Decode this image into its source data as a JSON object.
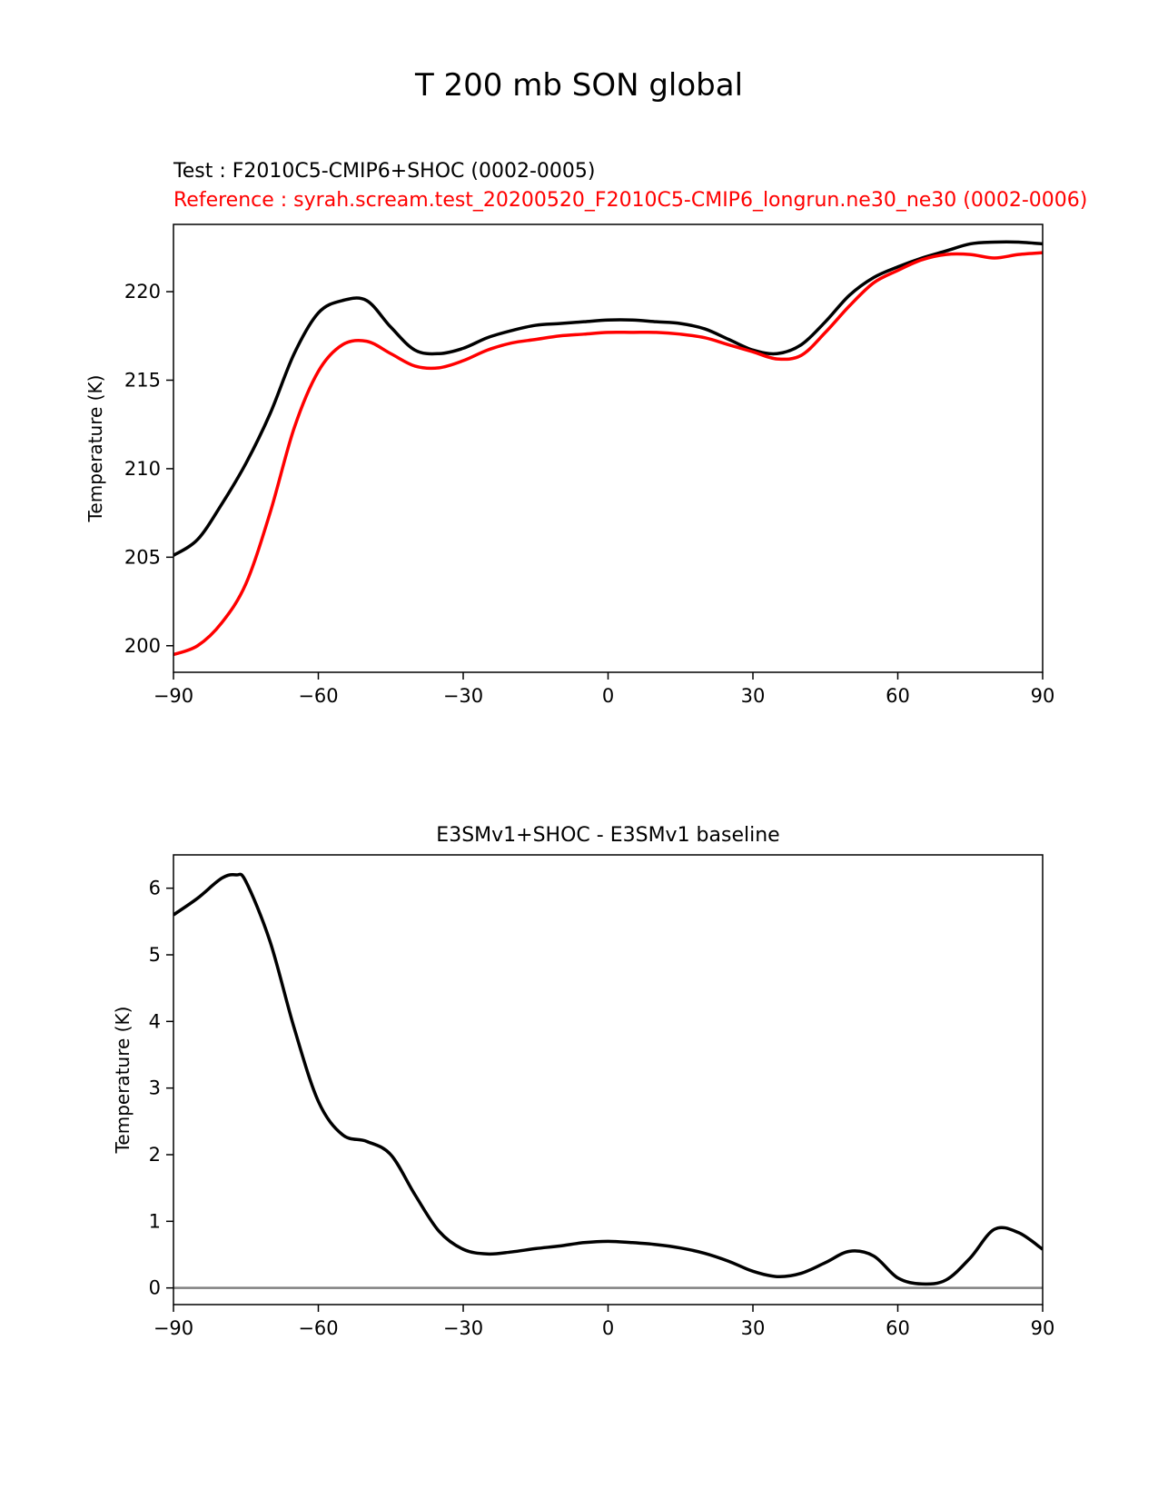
{
  "figure_title": "T 200 mb SON global",
  "chart_data": [
    {
      "type": "line",
      "title_test": "Test : F2010C5-CMIP6+SHOC (0002-0005)",
      "title_reference": "Reference : syrah.scream.test_20200520_F2010C5-CMIP6_longrun.ne30_ne30 (0002-0006)",
      "xlabel": "",
      "ylabel": "Temperature (K)",
      "xlim": [
        -90,
        90
      ],
      "ylim": [
        198.5,
        223.8
      ],
      "xticks": [
        -90,
        -60,
        -30,
        0,
        30,
        60,
        90
      ],
      "xtick_labels": [
        "−90",
        "−60",
        "−30",
        "0",
        "30",
        "60",
        "90"
      ],
      "yticks": [
        200,
        205,
        210,
        215,
        220
      ],
      "ytick_labels": [
        "200",
        "205",
        "210",
        "215",
        "220"
      ],
      "x": [
        -90,
        -85,
        -80,
        -75,
        -70,
        -65,
        -60,
        -55,
        -50,
        -45,
        -40,
        -35,
        -30,
        -25,
        -20,
        -15,
        -10,
        -5,
        0,
        5,
        10,
        15,
        20,
        25,
        30,
        35,
        40,
        45,
        50,
        55,
        60,
        65,
        70,
        75,
        80,
        85,
        90
      ],
      "series": [
        {
          "name": "Test",
          "color": "#000000",
          "values": [
            205.1,
            206.0,
            208.0,
            210.3,
            213.1,
            216.5,
            218.8,
            219.5,
            219.5,
            218.0,
            216.7,
            216.5,
            216.8,
            217.4,
            217.8,
            218.1,
            218.2,
            218.3,
            218.4,
            218.4,
            218.3,
            218.2,
            217.9,
            217.3,
            216.7,
            216.5,
            217.0,
            218.3,
            219.8,
            220.8,
            221.4,
            221.9,
            222.3,
            222.7,
            222.8,
            222.8,
            222.7
          ]
        },
        {
          "name": "Reference",
          "color": "#ff0000",
          "values": [
            199.5,
            200.0,
            201.3,
            203.5,
            207.5,
            212.3,
            215.5,
            217.0,
            217.2,
            216.5,
            215.8,
            215.7,
            216.1,
            216.7,
            217.1,
            217.3,
            217.5,
            217.6,
            217.7,
            217.7,
            217.7,
            217.6,
            217.4,
            217.0,
            216.6,
            216.2,
            216.4,
            217.7,
            219.2,
            220.5,
            221.2,
            221.8,
            222.1,
            222.1,
            221.9,
            222.1,
            222.2
          ]
        }
      ]
    },
    {
      "type": "line",
      "title": "E3SMv1+SHOC - E3SMv1 baseline",
      "xlabel": "",
      "ylabel": "Temperature (K)",
      "xlim": [
        -90,
        90
      ],
      "ylim": [
        -0.25,
        6.5
      ],
      "xticks": [
        -90,
        -60,
        -30,
        0,
        30,
        60,
        90
      ],
      "xtick_labels": [
        "−90",
        "−60",
        "−30",
        "0",
        "30",
        "60",
        "90"
      ],
      "yticks": [
        0,
        1,
        2,
        3,
        4,
        5,
        6
      ],
      "ytick_labels": [
        "0",
        "1",
        "2",
        "3",
        "4",
        "5",
        "6"
      ],
      "zero_line": 0,
      "x": [
        -90,
        -85,
        -80,
        -77,
        -75,
        -70,
        -65,
        -60,
        -55,
        -50,
        -45,
        -40,
        -35,
        -30,
        -25,
        -20,
        -15,
        -10,
        -5,
        0,
        5,
        10,
        15,
        20,
        25,
        30,
        35,
        40,
        45,
        50,
        55,
        60,
        65,
        70,
        75,
        80,
        85,
        90
      ],
      "series": [
        {
          "name": "Difference",
          "color": "#000000",
          "values": [
            5.6,
            5.85,
            6.15,
            6.2,
            6.1,
            5.2,
            3.9,
            2.8,
            2.3,
            2.2,
            2.0,
            1.4,
            0.85,
            0.58,
            0.51,
            0.54,
            0.59,
            0.63,
            0.68,
            0.7,
            0.68,
            0.65,
            0.6,
            0.52,
            0.4,
            0.25,
            0.17,
            0.22,
            0.38,
            0.55,
            0.48,
            0.15,
            0.06,
            0.12,
            0.45,
            0.88,
            0.83,
            0.58
          ]
        }
      ]
    }
  ]
}
